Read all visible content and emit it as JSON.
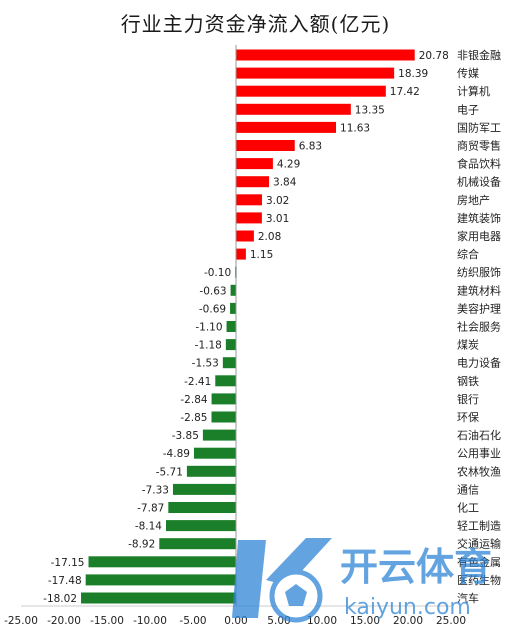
{
  "title": "行业主力资金净流入额(亿元)",
  "colors": {
    "positive": "#ff0000",
    "negative": "#1b7f2a",
    "axis": "#999999",
    "text": "#222222"
  },
  "watermark": {
    "brand_cn": "开云体育",
    "brand_en": "kaiyun.com"
  },
  "chart_data": {
    "type": "bar",
    "orientation": "horizontal",
    "title": "行业主力资金净流入额(亿元)",
    "categories": [
      "非银金融",
      "传媒",
      "计算机",
      "电子",
      "国防军工",
      "商贸零售",
      "食品饮料",
      "机械设备",
      "房地产",
      "建筑装饰",
      "家用电器",
      "综合",
      "纺织服饰",
      "建筑材料",
      "美容护理",
      "社会服务",
      "煤炭",
      "电力设备",
      "钢铁",
      "银行",
      "环保",
      "石油石化",
      "公用事业",
      "农林牧渔",
      "通信",
      "化工",
      "轻工制造",
      "交通运输",
      "有色金属",
      "医药生物",
      "汽车"
    ],
    "values": [
      20.78,
      18.39,
      17.42,
      13.35,
      11.63,
      6.83,
      4.29,
      3.84,
      3.02,
      3.01,
      2.08,
      1.15,
      -0.1,
      -0.63,
      -0.69,
      -1.1,
      -1.18,
      -1.53,
      -2.41,
      -2.84,
      -2.85,
      -3.85,
      -4.89,
      -5.71,
      -7.33,
      -7.87,
      -8.14,
      -8.92,
      -17.15,
      -17.48,
      -18.02
    ],
    "value_labels": [
      "20.78",
      "18.39",
      "17.42",
      "13.35",
      "11.63",
      "6.83",
      "4.29",
      "3.84",
      "3.02",
      "3.01",
      "2.08",
      "1.15",
      "-0.10",
      "-0.63",
      "-0.69",
      "-1.10",
      "-1.18",
      "-1.53",
      "-2.41",
      "-2.84",
      "-2.85",
      "-3.85",
      "-4.89",
      "-5.71",
      "-7.33",
      "-7.87",
      "-8.14",
      "-8.92",
      "-17.15",
      "-17.48",
      "-18.02"
    ],
    "xlim": [
      -25,
      25
    ],
    "x_ticks": [
      "-25.00",
      "-20.00",
      "-15.00",
      "-10.00",
      "-5.00",
      "0.00",
      "5.00",
      "10.00",
      "15.00",
      "20.00",
      "25.00"
    ],
    "grid": false,
    "legend": "none"
  }
}
